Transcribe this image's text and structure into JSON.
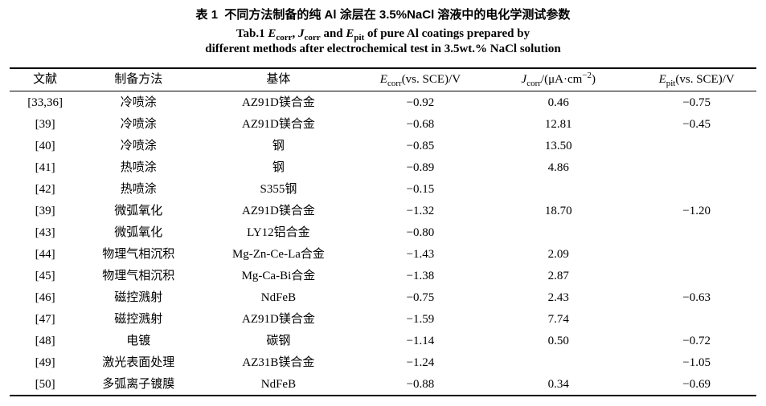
{
  "caption": {
    "chinese": "表 1  不同方法制备的纯 Al 涂层在 3.5%NaCl 溶液中的电化学测试参数",
    "english_line1_parts": [
      {
        "t": "Tab.1 "
      },
      {
        "t": "E",
        "style": "i"
      },
      {
        "t": "corr",
        "style": "sub"
      },
      {
        "t": ", "
      },
      {
        "t": "J",
        "style": "i"
      },
      {
        "t": "corr",
        "style": "sub"
      },
      {
        "t": " and "
      },
      {
        "t": "E",
        "style": "i"
      },
      {
        "t": "pit",
        "style": "sub"
      },
      {
        "t": " of pure Al coatings prepared by"
      }
    ],
    "english_line2": "different methods after electrochemical test in 3.5wt.% NaCl solution"
  },
  "table": {
    "column_keys": [
      "ref",
      "method",
      "substrate",
      "ecorr",
      "jcorr",
      "epit"
    ],
    "column_widths": [
      "9.5%",
      "15.5%",
      "22%",
      "16%",
      "21%",
      "16%"
    ],
    "headers": [
      {
        "id": "ref",
        "text": "文献"
      },
      {
        "id": "method",
        "text": "制备方法"
      },
      {
        "id": "substrate",
        "text": "基体"
      },
      {
        "id": "ecorr",
        "parts": [
          {
            "t": "E",
            "style": "i"
          },
          {
            "t": "corr",
            "style": "sub"
          },
          {
            "t": "(vs. SCE)/V"
          }
        ]
      },
      {
        "id": "jcorr",
        "parts": [
          {
            "t": "J",
            "style": "i"
          },
          {
            "t": "corr",
            "style": "sub"
          },
          {
            "t": "/(μA·cm"
          },
          {
            "t": "−2",
            "style": "sup"
          },
          {
            "t": ")"
          }
        ]
      },
      {
        "id": "epit",
        "parts": [
          {
            "t": "E",
            "style": "i"
          },
          {
            "t": "pit",
            "style": "sub"
          },
          {
            "t": "(vs. SCE)/V"
          }
        ]
      }
    ],
    "rows": [
      {
        "ref": "[33,36]",
        "method": "冷喷涂",
        "substrate": "AZ91D镁合金",
        "ecorr": "−0.92",
        "jcorr": "0.46",
        "epit": "−0.75"
      },
      {
        "ref": "[39]",
        "method": "冷喷涂",
        "substrate": "AZ91D镁合金",
        "ecorr": "−0.68",
        "jcorr": "12.81",
        "epit": "−0.45"
      },
      {
        "ref": "[40]",
        "method": "冷喷涂",
        "substrate": "钢",
        "ecorr": "−0.85",
        "jcorr": "13.50",
        "epit": ""
      },
      {
        "ref": "[41]",
        "method": "热喷涂",
        "substrate": "钢",
        "ecorr": "−0.89",
        "jcorr": "4.86",
        "epit": ""
      },
      {
        "ref": "[42]",
        "method": "热喷涂",
        "substrate": "S355钢",
        "ecorr": "−0.15",
        "jcorr": "",
        "epit": ""
      },
      {
        "ref": "[39]",
        "method": "微弧氧化",
        "substrate": "AZ91D镁合金",
        "ecorr": "−1.32",
        "jcorr": "18.70",
        "epit": "−1.20"
      },
      {
        "ref": "[43]",
        "method": "微弧氧化",
        "substrate": "LY12铝合金",
        "ecorr": "−0.80",
        "jcorr": "",
        "epit": ""
      },
      {
        "ref": "[44]",
        "method": "物理气相沉积",
        "substrate": "Mg-Zn-Ce-La合金",
        "ecorr": "−1.43",
        "jcorr": "2.09",
        "epit": ""
      },
      {
        "ref": "[45]",
        "method": "物理气相沉积",
        "substrate": "Mg-Ca-Bi合金",
        "ecorr": "−1.38",
        "jcorr": "2.87",
        "epit": ""
      },
      {
        "ref": "[46]",
        "method": "磁控溅射",
        "substrate": "NdFeB",
        "ecorr": "−0.75",
        "jcorr": "2.43",
        "epit": "−0.63"
      },
      {
        "ref": "[47]",
        "method": "磁控溅射",
        "substrate": "AZ91D镁合金",
        "ecorr": "−1.59",
        "jcorr": "7.74",
        "epit": ""
      },
      {
        "ref": "[48]",
        "method": "电镀",
        "substrate": "碳钢",
        "ecorr": "−1.14",
        "jcorr": "0.50",
        "epit": "−0.72"
      },
      {
        "ref": "[49]",
        "method": "激光表面处理",
        "substrate": "AZ31B镁合金",
        "ecorr": "−1.24",
        "jcorr": "",
        "epit": "−1.05"
      },
      {
        "ref": "[50]",
        "method": "多弧离子镀膜",
        "substrate": "NdFeB",
        "ecorr": "−0.88",
        "jcorr": "0.34",
        "epit": "−0.69"
      }
    ]
  }
}
